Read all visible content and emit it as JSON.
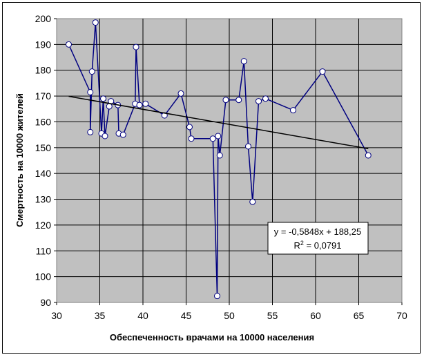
{
  "chart_data": {
    "type": "scatter",
    "title": "",
    "xlabel": "Обеспеченность врачами на 10000 населения",
    "ylabel": "Смертность на 10000 жителей",
    "xlim": [
      30,
      70
    ],
    "ylim": [
      90,
      200
    ],
    "x_ticks": [
      30,
      35,
      40,
      45,
      50,
      55,
      60,
      65,
      70
    ],
    "y_ticks": [
      90,
      100,
      110,
      120,
      130,
      140,
      150,
      160,
      170,
      180,
      190,
      200
    ],
    "grid": true,
    "legend": "none",
    "colors": {
      "plot_bg": "#c0c0c0",
      "series": "#000080",
      "marker_fill": "#ffffff",
      "trend": "#000000"
    },
    "series": [
      {
        "style": "line-with-markers",
        "points": [
          [
            31.4,
            190
          ],
          [
            33.9,
            171.5
          ],
          [
            33.9,
            156
          ],
          [
            34.1,
            179.5
          ],
          [
            34.5,
            198.5
          ],
          [
            35.2,
            155.5
          ],
          [
            35.4,
            169
          ],
          [
            35.6,
            154.5
          ],
          [
            36.1,
            166
          ],
          [
            36.3,
            168
          ],
          [
            37.1,
            166.5
          ],
          [
            37.2,
            155.5
          ],
          [
            37.7,
            155
          ],
          [
            39.1,
            167
          ],
          [
            39.2,
            189
          ],
          [
            39.6,
            166.5
          ],
          [
            40.3,
            167
          ],
          [
            42.5,
            162.5
          ],
          [
            44.4,
            171
          ],
          [
            45.4,
            158
          ],
          [
            45.6,
            153.5
          ],
          [
            48.1,
            153.5
          ],
          [
            48.6,
            92.5
          ],
          [
            48.7,
            154.5
          ],
          [
            48.9,
            147
          ],
          [
            49.6,
            168.5
          ],
          [
            51.1,
            168.5
          ],
          [
            51.7,
            183.5
          ],
          [
            52.2,
            150.5
          ],
          [
            52.7,
            129
          ],
          [
            53.4,
            168
          ],
          [
            54.2,
            169
          ],
          [
            57.4,
            164.5
          ],
          [
            60.8,
            179.5
          ],
          [
            66.1,
            147
          ]
        ]
      }
    ],
    "trendline": {
      "type": "linear",
      "slope": -0.5848,
      "intercept": 188.25,
      "x_range": [
        31.4,
        66.1
      ],
      "equation_text": "y = -0,5848x + 188,25",
      "r2_label": "R",
      "r2_sup": "2",
      "r2_value_text": " = 0,0791"
    }
  }
}
